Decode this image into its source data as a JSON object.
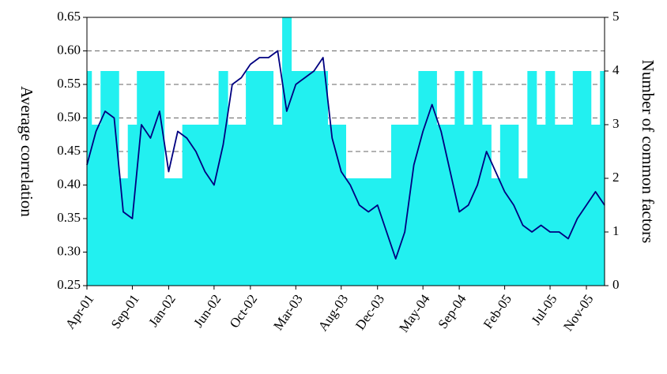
{
  "chart_data": {
    "type": "combo",
    "categories": [
      "Apr-01",
      null,
      null,
      null,
      null,
      "Sep-01",
      null,
      null,
      null,
      "Jan-02",
      null,
      null,
      null,
      null,
      "Jun-02",
      null,
      null,
      null,
      "Oct-02",
      null,
      null,
      null,
      null,
      "Mar-03",
      null,
      null,
      null,
      null,
      "Aug-03",
      null,
      null,
      null,
      "Dec-03",
      null,
      null,
      null,
      null,
      "May-04",
      null,
      null,
      null,
      "Sep-04",
      null,
      null,
      null,
      null,
      "Feb-05",
      null,
      null,
      null,
      null,
      "Jul-05",
      null,
      null,
      null,
      "Nov-05",
      null,
      null
    ],
    "series": [
      {
        "type": "bar",
        "axis": "y2",
        "color": "#22f0f0",
        "values": [
          4,
          3,
          4,
          4,
          2,
          3,
          4,
          4,
          4,
          2,
          2,
          3,
          3,
          3,
          3,
          4,
          3,
          3,
          4,
          4,
          4,
          3,
          5,
          4,
          4,
          4,
          4,
          3,
          3,
          2,
          2,
          2,
          2,
          2,
          3,
          3,
          3,
          4,
          4,
          3,
          3,
          4,
          3,
          4,
          3,
          2,
          3,
          3,
          2,
          4,
          3,
          4,
          3,
          3,
          4,
          4,
          3,
          4
        ]
      },
      {
        "type": "line",
        "color": "#000080",
        "values": [
          0.43,
          0.48,
          0.51,
          0.5,
          0.36,
          0.35,
          0.49,
          0.47,
          0.51,
          0.42,
          0.48,
          0.47,
          0.45,
          0.42,
          0.4,
          0.46,
          0.55,
          0.56,
          0.58,
          0.59,
          0.59,
          0.6,
          0.51,
          0.55,
          0.56,
          0.57,
          0.59,
          0.47,
          0.42,
          0.4,
          0.37,
          0.36,
          0.37,
          0.33,
          0.29,
          0.33,
          0.43,
          0.48,
          0.52,
          0.48,
          0.42,
          0.36,
          0.37,
          0.4,
          0.45,
          0.42,
          0.39,
          0.37,
          0.34,
          0.33,
          0.34,
          0.33,
          0.33,
          0.32,
          0.35,
          0.37,
          0.39,
          0.37
        ]
      }
    ],
    "ylabel": "Average correlation",
    "y2label": "Number of common factors",
    "ylim": [
      0.25,
      0.65
    ],
    "yticks": [
      0.25,
      {
        "value": 0.3,
        "label": "0.30"
      },
      0.35,
      {
        "value": 0.4,
        "label": "0.40"
      },
      0.45,
      {
        "value": 0.5,
        "label": "0.50"
      },
      0.55,
      {
        "value": 0.6,
        "label": "0.60"
      },
      0.65
    ],
    "y2lim": [
      0,
      5
    ],
    "y2ticks": [
      0,
      1,
      2,
      3,
      4,
      5
    ],
    "grid": true
  }
}
